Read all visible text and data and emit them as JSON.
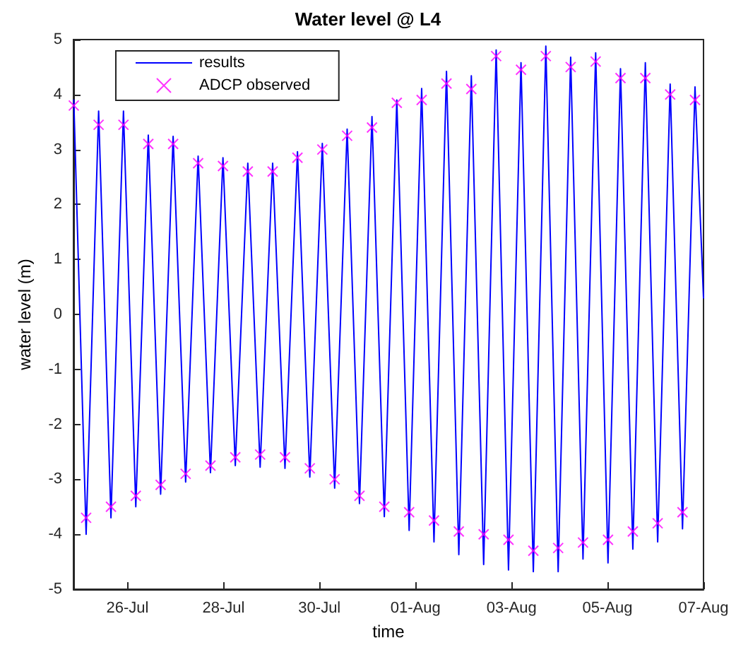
{
  "chart_data": {
    "type": "line",
    "title": "Water level @ L4",
    "xlabel": "time",
    "ylabel": "water level (m)",
    "xlim": [
      "--07-24T21:00",
      "--08-07T00:00"
    ],
    "xticks": [
      {
        "value": "--07-26",
        "label": "26-Jul"
      },
      {
        "value": "--07-28",
        "label": "28-Jul"
      },
      {
        "value": "--07-30",
        "label": "30-Jul"
      },
      {
        "value": "--08-01",
        "label": "01-Aug"
      },
      {
        "value": "--08-03",
        "label": "03-Aug"
      },
      {
        "value": "--08-05",
        "label": "05-Aug"
      },
      {
        "value": "--08-07",
        "label": "07-Aug"
      }
    ],
    "ylim": [
      -5,
      5
    ],
    "yticks": [
      -5,
      -4,
      -3,
      -2,
      -1,
      0,
      1,
      2,
      3,
      4,
      5
    ],
    "grid": false,
    "legend": "top left",
    "series": [
      {
        "name": "results",
        "color": "#0000ff",
        "marker": "none",
        "line_style": "solid",
        "x": [
          "--07-24T21:10",
          "--07-25T03:20",
          "--07-25T09:35",
          "--07-25T15:45",
          "--07-25T22:00",
          "--07-26T04:10",
          "--07-26T10:25",
          "--07-26T16:35",
          "--07-26T22:50",
          "--07-27T05:05",
          "--07-27T11:20",
          "--07-27T17:30",
          "--07-27T23:45",
          "--07-28T05:55",
          "--07-28T12:10",
          "--07-28T18:20",
          "--07-29T00:35",
          "--07-29T06:45",
          "--07-29T13:00",
          "--07-29T19:10",
          "--07-30T01:25",
          "--07-30T07:35",
          "--07-30T13:50",
          "--07-30T20:00",
          "--07-31T02:15",
          "--07-31T08:25",
          "--07-31T14:40",
          "--07-31T20:50",
          "--08-01T03:05",
          "--08-01T09:15",
          "--08-01T15:30",
          "--08-01T21:40",
          "--08-02T03:55",
          "--08-02T10:05",
          "--08-02T16:20",
          "--08-02T22:30",
          "--08-03T04:45",
          "--08-03T10:55",
          "--08-03T17:10",
          "--08-03T23:20",
          "--08-04T05:35",
          "--08-04T11:45",
          "--08-04T18:05",
          "--08-05T00:15",
          "--08-05T06:30",
          "--08-05T12:40",
          "--08-05T18:55",
          "--08-06T01:05",
          "--08-06T07:20",
          "--08-06T13:30",
          "--08-06T19:45",
          "--08-07T00:00"
        ],
        "values": [
          3.9,
          -4.0,
          3.7,
          -3.7,
          3.7,
          -3.5,
          3.26,
          -3.27,
          3.24,
          -3.05,
          2.88,
          -2.88,
          2.85,
          -2.75,
          2.75,
          -2.78,
          2.75,
          -2.8,
          2.96,
          -2.96,
          3.11,
          -3.16,
          3.37,
          -3.44,
          3.6,
          -3.68,
          3.9,
          -3.93,
          4.11,
          -4.14,
          4.42,
          -4.37,
          4.34,
          -4.55,
          4.81,
          -4.65,
          4.58,
          -4.68,
          4.88,
          -4.68,
          4.68,
          -4.45,
          4.76,
          -4.52,
          4.47,
          -4.27,
          4.58,
          -4.14,
          4.19,
          -3.9,
          4.14,
          0.3
        ]
      },
      {
        "name": "ADCP observed",
        "type": "scatter",
        "color": "#ff00ff",
        "marker": "cross",
        "x": [
          "--07-24T21:10",
          "--07-25T03:20",
          "--07-25T09:35",
          "--07-25T15:45",
          "--07-25T22:00",
          "--07-26T04:10",
          "--07-26T10:25",
          "--07-26T16:35",
          "--07-26T22:50",
          "--07-27T05:05",
          "--07-27T11:20",
          "--07-27T17:30",
          "--07-27T23:45",
          "--07-28T05:55",
          "--07-28T12:10",
          "--07-28T18:20",
          "--07-29T00:35",
          "--07-29T06:45",
          "--07-29T13:00",
          "--07-29T19:10",
          "--07-30T01:25",
          "--07-30T07:35",
          "--07-30T13:50",
          "--07-30T20:00",
          "--07-31T02:15",
          "--07-31T08:25",
          "--07-31T14:40",
          "--07-31T20:50",
          "--08-01T03:05",
          "--08-01T09:15",
          "--08-01T15:30",
          "--08-01T21:40",
          "--08-02T03:55",
          "--08-02T10:05",
          "--08-02T16:20",
          "--08-02T22:30",
          "--08-03T04:45",
          "--08-03T10:55",
          "--08-03T17:10",
          "--08-03T23:20",
          "--08-04T05:35",
          "--08-04T11:45",
          "--08-04T18:05",
          "--08-05T00:15",
          "--08-05T06:30",
          "--08-05T12:40",
          "--08-05T18:55",
          "--08-06T01:05",
          "--08-06T07:20",
          "--08-06T13:30",
          "--08-06T19:45"
        ],
        "values": [
          3.8,
          -3.7,
          3.45,
          -3.5,
          3.45,
          -3.3,
          3.1,
          -3.1,
          3.1,
          -2.9,
          2.75,
          -2.75,
          2.7,
          -2.6,
          2.6,
          -2.55,
          2.6,
          -2.6,
          2.85,
          -2.8,
          3.0,
          -3.0,
          3.25,
          -3.3,
          3.4,
          -3.5,
          3.85,
          -3.6,
          3.9,
          -3.75,
          4.2,
          -3.95,
          4.1,
          -4.0,
          4.7,
          -4.1,
          4.45,
          -4.3,
          4.7,
          -4.25,
          4.5,
          -4.15,
          4.6,
          -4.1,
          4.3,
          -3.95,
          4.3,
          -3.8,
          4.0,
          -3.6,
          3.9
        ]
      }
    ]
  }
}
